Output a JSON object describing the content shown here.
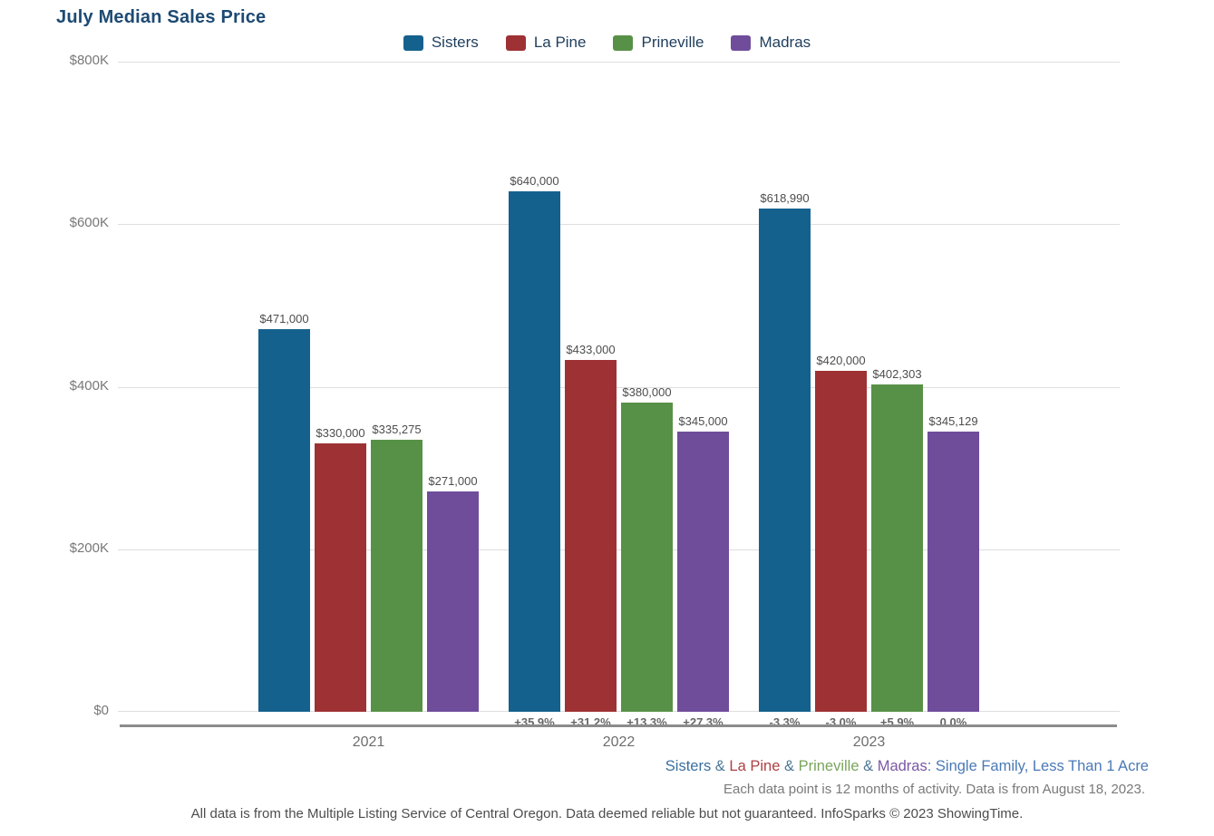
{
  "title": "July Median Sales Price",
  "legend": [
    {
      "label": "Sisters",
      "color": "#15618E"
    },
    {
      "label": "La Pine",
      "color": "#9E3134"
    },
    {
      "label": "Prineville",
      "color": "#579147"
    },
    {
      "label": "Madras",
      "color": "#6F4D9B"
    }
  ],
  "chart_data": {
    "type": "bar",
    "title": "July Median Sales Price",
    "categories": [
      "2021",
      "2022",
      "2023"
    ],
    "series": [
      {
        "name": "Sisters",
        "color": "#15618E",
        "values": [
          471000,
          640000,
          618990
        ],
        "value_labels": [
          "$471,000",
          "$640,000",
          "$618,990"
        ],
        "pct_labels": [
          "",
          "+35.9%",
          "-3.3%"
        ]
      },
      {
        "name": "La Pine",
        "color": "#9E3134",
        "values": [
          330000,
          433000,
          420000
        ],
        "value_labels": [
          "$330,000",
          "$433,000",
          "$420,000"
        ],
        "pct_labels": [
          "",
          "+31.2%",
          "-3.0%"
        ]
      },
      {
        "name": "Prineville",
        "color": "#579147",
        "values": [
          335275,
          380000,
          402303
        ],
        "value_labels": [
          "$335,275",
          "$380,000",
          "$402,303"
        ],
        "pct_labels": [
          "",
          "+13.3%",
          "+5.9%"
        ]
      },
      {
        "name": "Madras",
        "color": "#6F4D9B",
        "values": [
          271000,
          345000,
          345129
        ],
        "value_labels": [
          "$271,000",
          "$345,000",
          "$345,129"
        ],
        "pct_labels": [
          "",
          "+27.3%",
          "0.0%"
        ]
      }
    ],
    "ylim": [
      0,
      800000
    ],
    "ytick_labels": [
      "$800K",
      "$600K",
      "$400K",
      "$200K",
      "$0"
    ],
    "grid": true,
    "legend_position": "top",
    "xlabel": "",
    "ylabel": ""
  },
  "footer": {
    "series_note": [
      {
        "text": "Sisters",
        "color": "#3B6FA0"
      },
      {
        "text": " & ",
        "color": "#4C7795"
      },
      {
        "text": "La Pine",
        "color": "#AF4042"
      },
      {
        "text": " & ",
        "color": "#4C7795"
      },
      {
        "text": "Prineville",
        "color": "#79A55C"
      },
      {
        "text": " & ",
        "color": "#4C7795"
      },
      {
        "text": "Madras",
        "color": "#7A57A5"
      },
      {
        "text": ": Single Family, Less Than 1 Acre",
        "color": "#4A79B5"
      }
    ],
    "activity_note": "Each data point is 12 months of activity. Data is from August 18, 2023.",
    "disclaimer": "All data is from the Multiple Listing Service of Central Oregon. Data deemed reliable but not guaranteed. InfoSparks © 2023 ShowingTime."
  }
}
